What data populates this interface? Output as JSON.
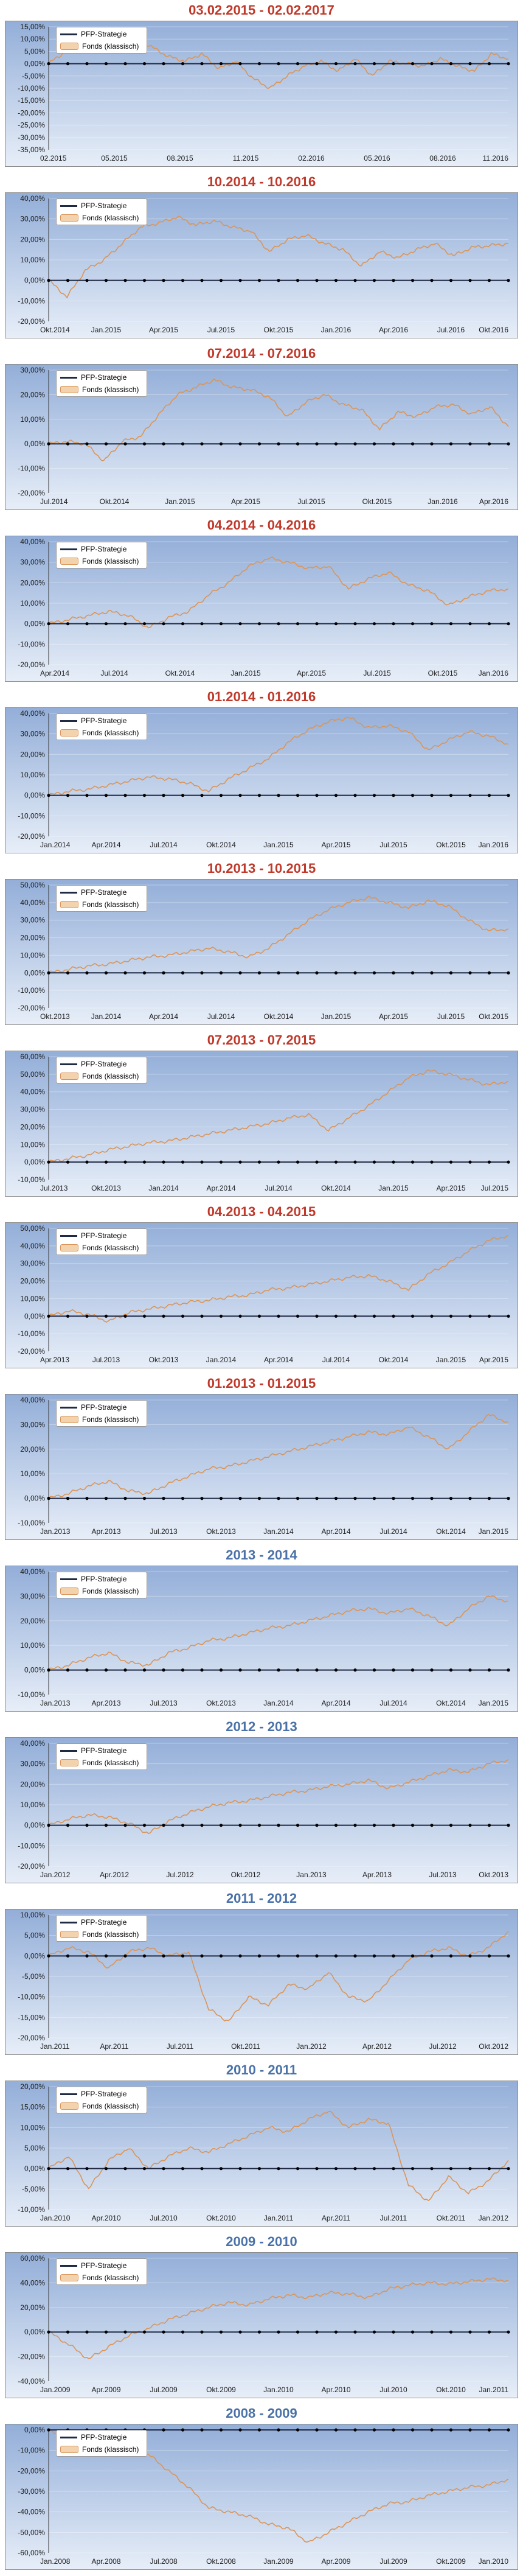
{
  "colors": {
    "title_red": "#c0392b",
    "title_blue": "#4a72a8",
    "pfp_line": "#1f2a44",
    "fonds_line": "#d9955a",
    "axis_line": "#000000"
  },
  "legend": {
    "pfp": "PFP-Strategie",
    "fonds": "Fonds (klassisch)"
  },
  "chart_data": [
    {
      "type": "line",
      "title": "03.02.2015 - 02.02.2017",
      "title_color": "red",
      "x_tick_labels": [
        "02.2015",
        "05.2015",
        "08.2015",
        "11.2015",
        "02.2016",
        "05.2016",
        "08.2016",
        "11.2016"
      ],
      "y_tick_labels": [
        "15,00%",
        "10,00%",
        "5,00%",
        "0,00%",
        "-5,00%",
        "-10,00%",
        "-15,00%",
        "-20,00%",
        "-25,00%",
        "-30,00%",
        "-35,00%"
      ],
      "ylim": [
        -35,
        15
      ],
      "series": [
        {
          "name": "PFP-Strategie",
          "values": [
            0,
            0
          ]
        },
        {
          "name": "Fonds (klassisch)",
          "values": [
            0,
            5,
            9,
            12,
            10,
            11,
            7,
            3,
            1,
            4,
            -2,
            1,
            -6,
            -10,
            -5,
            -1,
            1,
            -3,
            2,
            -5,
            1,
            0,
            -1,
            2,
            -1,
            -3,
            4,
            2
          ]
        }
      ]
    },
    {
      "type": "line",
      "title": "10.2014 - 10.2016",
      "title_color": "red",
      "x_tick_labels": [
        "Okt.2014",
        "Jan.2015",
        "Apr.2015",
        "Jul.2015",
        "Okt.2015",
        "Jan.2016",
        "Apr.2016",
        "Jul.2016",
        "Okt.2016"
      ],
      "y_tick_labels": [
        "40,00%",
        "30,00%",
        "20,00%",
        "10,00%",
        "0,00%",
        "-10,00%",
        "-20,00%"
      ],
      "ylim": [
        -20,
        40
      ],
      "series": [
        {
          "name": "PFP-Strategie",
          "values": [
            0,
            0
          ]
        },
        {
          "name": "Fonds (klassisch)",
          "values": [
            0,
            -8,
            5,
            10,
            18,
            26,
            28,
            31,
            27,
            29,
            26,
            24,
            14,
            20,
            22,
            18,
            15,
            7,
            14,
            11,
            15,
            18,
            12,
            16,
            17,
            18
          ]
        }
      ]
    },
    {
      "type": "line",
      "title": "07.2014 - 07.2016",
      "title_color": "red",
      "x_tick_labels": [
        "Jul.2014",
        "Okt.2014",
        "Jan.2015",
        "Apr.2015",
        "Jul.2015",
        "Okt.2015",
        "Jan.2016",
        "Apr.2016"
      ],
      "y_tick_labels": [
        "30,00%",
        "20,00%",
        "10,00%",
        "0,00%",
        "-10,00%",
        "-20,00%"
      ],
      "ylim": [
        -20,
        30
      ],
      "series": [
        {
          "name": "PFP-Strategie",
          "values": [
            0,
            0
          ]
        },
        {
          "name": "Fonds (klassisch)",
          "values": [
            0,
            1,
            0,
            -7,
            1,
            3,
            12,
            20,
            23,
            26,
            23,
            22,
            19,
            11,
            17,
            20,
            16,
            14,
            6,
            13,
            11,
            15,
            16,
            12,
            15,
            7
          ]
        }
      ]
    },
    {
      "type": "line",
      "title": "04.2014 - 04.2016",
      "title_color": "red",
      "x_tick_labels": [
        "Apr.2014",
        "Jul.2014",
        "Okt.2014",
        "Jan.2015",
        "Apr.2015",
        "Jul.2015",
        "Okt.2015",
        "Jan.2016"
      ],
      "y_tick_labels": [
        "40,00%",
        "30,00%",
        "20,00%",
        "10,00%",
        "0,00%",
        "-10,00%",
        "-20,00%"
      ],
      "ylim": [
        -20,
        40
      ],
      "series": [
        {
          "name": "PFP-Strategie",
          "values": [
            0,
            0
          ]
        },
        {
          "name": "Fonds (klassisch)",
          "values": [
            0,
            2,
            4,
            6,
            4,
            -2,
            3,
            6,
            14,
            20,
            28,
            32,
            30,
            27,
            28,
            17,
            22,
            25,
            19,
            16,
            9,
            13,
            16,
            17
          ]
        }
      ]
    },
    {
      "type": "line",
      "title": "01.2014 - 01.2016",
      "title_color": "red",
      "x_tick_labels": [
        "Jan.2014",
        "Apr.2014",
        "Jul.2014",
        "Okt.2014",
        "Jan.2015",
        "Apr.2015",
        "Jul.2015",
        "Okt.2015",
        "Jan.2016"
      ],
      "y_tick_labels": [
        "40,00%",
        "30,00%",
        "20,00%",
        "10,00%",
        "0,00%",
        "-10,00%",
        "-20,00%"
      ],
      "ylim": [
        -20,
        40
      ],
      "series": [
        {
          "name": "PFP-Strategie",
          "values": [
            0,
            0
          ]
        },
        {
          "name": "Fonds (klassisch)",
          "values": [
            0,
            2,
            3,
            5,
            7,
            9,
            8,
            6,
            2,
            8,
            13,
            18,
            26,
            32,
            36,
            38,
            33,
            34,
            31,
            22,
            27,
            31,
            29,
            25
          ]
        }
      ]
    },
    {
      "type": "line",
      "title": "10.2013 - 10.2015",
      "title_color": "red",
      "x_tick_labels": [
        "Okt.2013",
        "Jan.2014",
        "Apr.2014",
        "Jul.2014",
        "Okt.2014",
        "Jan.2015",
        "Apr.2015",
        "Jul.2015",
        "Okt.2015"
      ],
      "y_tick_labels": [
        "50,00%",
        "40,00%",
        "30,00%",
        "20,00%",
        "10,00%",
        "0,00%",
        "-10,00%",
        "-20,00%"
      ],
      "ylim": [
        -20,
        50
      ],
      "series": [
        {
          "name": "PFP-Strategie",
          "values": [
            0,
            0
          ]
        },
        {
          "name": "Fonds (klassisch)",
          "values": [
            0,
            2,
            4,
            5,
            7,
            9,
            10,
            12,
            14,
            12,
            9,
            14,
            22,
            30,
            36,
            40,
            43,
            40,
            37,
            41,
            38,
            30,
            24,
            25
          ]
        }
      ]
    },
    {
      "type": "line",
      "title": "07.2013 - 07.2015",
      "title_color": "red",
      "x_tick_labels": [
        "Jul.2013",
        "Okt.2013",
        "Jan.2014",
        "Apr.2014",
        "Jul.2014",
        "Okt.2014",
        "Jan.2015",
        "Apr.2015",
        "Jul.2015"
      ],
      "y_tick_labels": [
        "60,00%",
        "50,00%",
        "40,00%",
        "30,00%",
        "20,00%",
        "10,00%",
        "0,00%",
        "-10,00%"
      ],
      "ylim": [
        -10,
        60
      ],
      "series": [
        {
          "name": "PFP-Strategie",
          "values": [
            0,
            0
          ]
        },
        {
          "name": "Fonds (klassisch)",
          "values": [
            0,
            2,
            4,
            7,
            9,
            11,
            12,
            14,
            16,
            18,
            20,
            22,
            25,
            27,
            18,
            25,
            32,
            40,
            48,
            52,
            50,
            47,
            44,
            46
          ]
        }
      ]
    },
    {
      "type": "line",
      "title": "04.2013 - 04.2015",
      "title_color": "red",
      "x_tick_labels": [
        "Apr.2013",
        "Jul.2013",
        "Okt.2013",
        "Jan.2014",
        "Apr.2014",
        "Jul.2014",
        "Okt.2014",
        "Jan.2015",
        "Apr.2015"
      ],
      "y_tick_labels": [
        "50,00%",
        "40,00%",
        "30,00%",
        "20,00%",
        "10,00%",
        "0,00%",
        "-10,00%",
        "-20,00%"
      ],
      "ylim": [
        -20,
        50
      ],
      "series": [
        {
          "name": "PFP-Strategie",
          "values": [
            0,
            0
          ]
        },
        {
          "name": "Fonds (klassisch)",
          "values": [
            0,
            3,
            1,
            -3,
            2,
            4,
            6,
            8,
            9,
            11,
            12,
            15,
            16,
            18,
            20,
            22,
            23,
            20,
            15,
            24,
            30,
            37,
            43,
            46
          ]
        }
      ]
    },
    {
      "type": "line",
      "title": "01.2013 - 01.2015",
      "title_color": "red",
      "x_tick_labels": [
        "Jan.2013",
        "Apr.2013",
        "Jul.2013",
        "Okt.2013",
        "Jan.2014",
        "Apr.2014",
        "Jul.2014",
        "Okt.2014",
        "Jan.2015"
      ],
      "y_tick_labels": [
        "40,00%",
        "30,00%",
        "20,00%",
        "10,00%",
        "0,00%",
        "-10,00%"
      ],
      "ylim": [
        -10,
        40
      ],
      "series": [
        {
          "name": "PFP-Strategie",
          "values": [
            0,
            0
          ]
        },
        {
          "name": "Fonds (klassisch)",
          "values": [
            0,
            2,
            5,
            7,
            3,
            2,
            6,
            9,
            12,
            13,
            15,
            17,
            19,
            21,
            23,
            25,
            27,
            26,
            29,
            25,
            20,
            27,
            34,
            31
          ]
        }
      ]
    },
    {
      "type": "line",
      "title": "2013 - 2014",
      "title_color": "blue",
      "x_tick_labels": [
        "Jan.2013",
        "Apr.2013",
        "Jul.2013",
        "Okt.2013",
        "Jan.2014",
        "Apr.2014",
        "Jul.2014",
        "Okt.2014",
        "Jan.2015"
      ],
      "y_tick_labels": [
        "40,00%",
        "30,00%",
        "20,00%",
        "10,00%",
        "0,00%",
        "-10,00%"
      ],
      "ylim": [
        -10,
        40
      ],
      "series": [
        {
          "name": "PFP-Strategie",
          "values": [
            0,
            0
          ]
        },
        {
          "name": "Fonds (klassisch)",
          "values": [
            0,
            2,
            5,
            7,
            3,
            2,
            7,
            9,
            12,
            13,
            15,
            17,
            18,
            20,
            22,
            24,
            25,
            23,
            25,
            22,
            18,
            25,
            30,
            28
          ]
        }
      ]
    },
    {
      "type": "line",
      "title": "2012 - 2013",
      "title_color": "blue",
      "x_tick_labels": [
        "Jan.2012",
        "Apr.2012",
        "Jul.2012",
        "Okt.2012",
        "Jan.2013",
        "Apr.2013",
        "Jul.2013",
        "Okt.2013"
      ],
      "y_tick_labels": [
        "40,00%",
        "30,00%",
        "20,00%",
        "10,00%",
        "0,00%",
        "-10,00%",
        "-20,00%"
      ],
      "ylim": [
        -20,
        40
      ],
      "series": [
        {
          "name": "PFP-Strategie",
          "values": [
            0,
            0
          ]
        },
        {
          "name": "Fonds (klassisch)",
          "values": [
            0,
            3,
            5,
            4,
            1,
            -4,
            2,
            6,
            9,
            11,
            12,
            14,
            16,
            17,
            19,
            20,
            22,
            18,
            21,
            24,
            27,
            26,
            30,
            32
          ]
        }
      ]
    },
    {
      "type": "line",
      "title": "2011 - 2012",
      "title_color": "blue",
      "x_tick_labels": [
        "Jan.2011",
        "Apr.2011",
        "Jul.2011",
        "Okt.2011",
        "Jan.2012",
        "Apr.2012",
        "Jul.2012",
        "Okt.2012"
      ],
      "y_tick_labels": [
        "10,00%",
        "5,00%",
        "0,00%",
        "-5,00%",
        "-10,00%",
        "-15,00%",
        "-20,00%"
      ],
      "ylim": [
        -20,
        10
      ],
      "series": [
        {
          "name": "PFP-Strategie",
          "values": [
            0,
            0
          ]
        },
        {
          "name": "Fonds (klassisch)",
          "values": [
            0,
            2,
            1,
            -3,
            1,
            2,
            0,
            1,
            -13,
            -16,
            -10,
            -12,
            -7,
            -8,
            -4,
            -10,
            -11,
            -6,
            -1,
            1,
            2,
            0,
            2,
            6
          ]
        }
      ]
    },
    {
      "type": "line",
      "title": "2010 - 2011",
      "title_color": "blue",
      "x_tick_labels": [
        "Jan.2010",
        "Apr.2010",
        "Jul.2010",
        "Okt.2010",
        "Jan.2011",
        "Apr.2011",
        "Jul.2011",
        "Okt.2011",
        "Jan.2012"
      ],
      "y_tick_labels": [
        "20,00%",
        "15,00%",
        "10,00%",
        "5,00%",
        "0,00%",
        "-5,00%",
        "-10,00%"
      ],
      "ylim": [
        -10,
        20
      ],
      "series": [
        {
          "name": "PFP-Strategie",
          "values": [
            0,
            0
          ]
        },
        {
          "name": "Fonds (klassisch)",
          "values": [
            0,
            3,
            -5,
            2,
            5,
            0,
            3,
            5,
            4,
            6,
            8,
            10,
            9,
            12,
            14,
            10,
            12,
            11,
            -4,
            -8,
            -2,
            -6,
            -3,
            2
          ]
        }
      ]
    },
    {
      "type": "line",
      "title": "2009 - 2010",
      "title_color": "blue",
      "x_tick_labels": [
        "Jan.2009",
        "Apr.2009",
        "Jul.2009",
        "Okt.2009",
        "Jan.2010",
        "Apr.2010",
        "Jul.2010",
        "Okt.2010",
        "Jan.2011"
      ],
      "y_tick_labels": [
        "60,00%",
        "40,00%",
        "20,00%",
        "0,00%",
        "-20,00%",
        "-40,00%"
      ],
      "ylim": [
        -40,
        60
      ],
      "series": [
        {
          "name": "PFP-Strategie",
          "values": [
            0,
            0
          ]
        },
        {
          "name": "Fonds (klassisch)",
          "values": [
            0,
            -10,
            -22,
            -12,
            -3,
            3,
            10,
            15,
            20,
            24,
            22,
            27,
            30,
            28,
            32,
            31,
            28,
            35,
            38,
            40,
            39,
            41,
            43,
            42
          ]
        }
      ]
    },
    {
      "type": "line",
      "title": "2008 - 2009",
      "title_color": "blue",
      "x_tick_labels": [
        "Jan.2008",
        "Apr.2008",
        "Jul.2008",
        "Okt.2008",
        "Jan.2009",
        "Apr.2009",
        "Jul.2009",
        "Okt.2009",
        "Jan.2010"
      ],
      "y_tick_labels": [
        "0,00%",
        "-10,00%",
        "-20,00%",
        "-30,00%",
        "-40,00%",
        "-50,00%",
        "-60,00%"
      ],
      "ylim": [
        -60,
        0
      ],
      "series": [
        {
          "name": "PFP-Strategie",
          "values": [
            0,
            0
          ]
        },
        {
          "name": "Fonds (klassisch)",
          "values": [
            0,
            -6,
            -3,
            -5,
            -10,
            -12,
            -20,
            -28,
            -38,
            -40,
            -42,
            -46,
            -48,
            -55,
            -50,
            -45,
            -40,
            -36,
            -35,
            -32,
            -30,
            -28,
            -27,
            -24
          ]
        }
      ]
    }
  ]
}
